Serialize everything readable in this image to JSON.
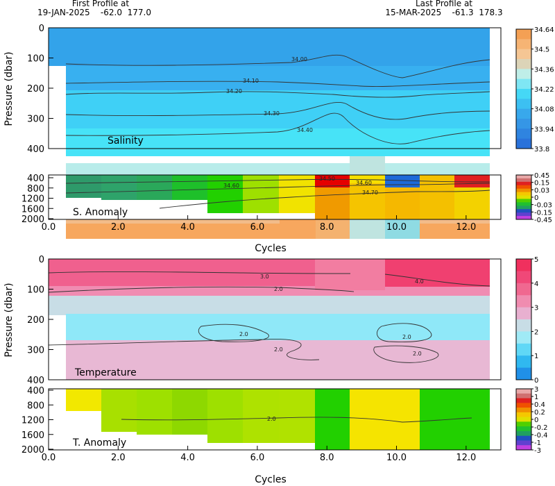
{
  "header": {
    "first_label": "First Profile at",
    "first_value": "19-JAN-2025    -62.0  177.0",
    "last_label": "Last Profile at",
    "last_value": "15-MAR-2025    -61.3  178.3"
  },
  "chart_data": [
    {
      "type": "heatmap",
      "panel_label": "Salinity",
      "ylabel": "Pressure (dbar)",
      "xlim": [
        0,
        13
      ],
      "ylim": [
        400,
        0
      ],
      "yticks": [
        "0",
        "100",
        "200",
        "300",
        "400"
      ],
      "colorbar": [
        "34.64",
        "34.5",
        "34.36",
        "34.22",
        "34.08",
        "33.94",
        "33.8"
      ],
      "contours": [
        "34.00",
        "34.10",
        "34.20",
        "34.30",
        "34.40"
      ]
    },
    {
      "type": "heatmap",
      "panel_label": "S. Anomaly",
      "ylim": [
        2000,
        400
      ],
      "yticks": [
        "400",
        "800",
        "1200",
        "1600",
        "2000"
      ],
      "xticks": [
        "0.0",
        "2.0",
        "4.0",
        "6.0",
        "8.0",
        "10.0",
        "12.0"
      ],
      "xlabel": "Cycles",
      "colorbar": [
        "0.45",
        "0.15",
        "0.03",
        "0",
        "-0.03",
        "-0.15",
        "-0.45"
      ],
      "contours": [
        "34.50",
        "34.60",
        "34.60",
        "34.70"
      ]
    },
    {
      "type": "heatmap",
      "panel_label": "Temperature",
      "ylabel": "Pressure (dbar)",
      "ylim": [
        400,
        0
      ],
      "yticks": [
        "0",
        "100",
        "200",
        "300",
        "400"
      ],
      "colorbar": [
        "5",
        "4",
        "3",
        "2",
        "1",
        "0"
      ],
      "contours": [
        "3.0",
        "2.0",
        "4.0",
        "2.0",
        "2.0",
        "2.0",
        "2.0"
      ]
    },
    {
      "type": "heatmap",
      "panel_label": "T. Anomaly",
      "ylim": [
        2000,
        400
      ],
      "yticks": [
        "400",
        "800",
        "1200",
        "1600",
        "2000"
      ],
      "xticks": [
        "0.0",
        "2.0",
        "4.0",
        "6.0",
        "8.0",
        "10.0",
        "12.0"
      ],
      "xlabel": "Cycles",
      "colorbar": [
        "3",
        "1",
        "0.4",
        "0.2",
        "0",
        "-0.2",
        "-0.4",
        "-1",
        "-3"
      ],
      "contours": [
        "2.0"
      ]
    }
  ]
}
